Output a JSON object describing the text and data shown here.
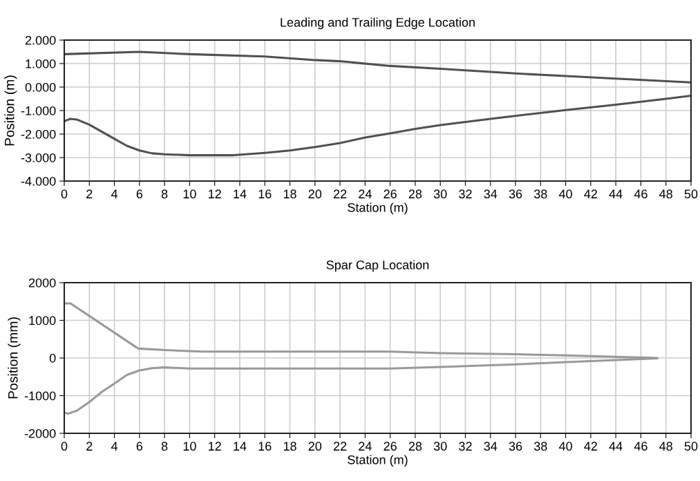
{
  "chart_data": [
    {
      "type": "line",
      "title": "Leading and Trailing Edge Location",
      "xlabel": "Station (m)",
      "ylabel": "Position (m)",
      "xlim": [
        0,
        50
      ],
      "xticks": [
        0,
        2,
        4,
        6,
        8,
        10,
        12,
        14,
        16,
        18,
        20,
        22,
        24,
        26,
        28,
        30,
        32,
        34,
        36,
        38,
        40,
        42,
        44,
        46,
        48,
        50
      ],
      "ylim": [
        -4,
        2
      ],
      "yticks": [
        {
          "value": 2,
          "label": "2.000"
        },
        {
          "value": 1,
          "label": "1.000"
        },
        {
          "value": 0,
          "label": "0.000"
        },
        {
          "value": -1,
          "label": "-1.000"
        },
        {
          "value": -2,
          "label": "-2.000"
        },
        {
          "value": -3,
          "label": "-3.000"
        },
        {
          "value": -4,
          "label": "-4.000"
        }
      ],
      "grid": true,
      "series": [
        {
          "color": "#505050",
          "x": [
            0,
            6,
            10,
            16,
            20,
            22,
            26,
            30,
            36,
            40,
            44,
            50
          ],
          "values": [
            1.4,
            1.5,
            1.4,
            1.3,
            1.15,
            1.1,
            0.9,
            0.78,
            0.58,
            0.47,
            0.36,
            0.2
          ]
        },
        {
          "color": "#505050",
          "x": [
            0,
            0.5,
            1,
            2,
            3,
            4,
            5,
            6,
            7,
            8,
            10,
            13.5,
            16,
            18,
            20,
            22,
            24,
            26,
            28,
            30,
            34,
            38,
            40,
            44,
            48,
            50
          ],
          "values": [
            -1.45,
            -1.35,
            -1.38,
            -1.6,
            -1.9,
            -2.2,
            -2.5,
            -2.7,
            -2.82,
            -2.86,
            -2.9,
            -2.9,
            -2.8,
            -2.7,
            -2.55,
            -2.38,
            -2.15,
            -1.97,
            -1.78,
            -1.62,
            -1.35,
            -1.1,
            -0.98,
            -0.75,
            -0.5,
            -0.37
          ]
        }
      ]
    },
    {
      "type": "line",
      "title": "Spar Cap Location",
      "xlabel": "Station (m)",
      "ylabel": "Position (mm)",
      "xlim": [
        0,
        50
      ],
      "xticks": [
        0,
        2,
        4,
        6,
        8,
        10,
        12,
        14,
        16,
        18,
        20,
        22,
        24,
        26,
        28,
        30,
        32,
        34,
        36,
        38,
        40,
        42,
        44,
        46,
        48,
        50
      ],
      "ylim": [
        -2000,
        2000
      ],
      "yticks": [
        2000,
        1000,
        0,
        -1000,
        -2000
      ],
      "grid": true,
      "series": [
        {
          "color": "#999999",
          "x": [
            0,
            0.5,
            5.9,
            8,
            11,
            26,
            30,
            36,
            40,
            47.3
          ],
          "values": [
            1450,
            1450,
            250,
            210,
            170,
            170,
            130,
            100,
            70,
            0
          ]
        },
        {
          "color": "#999999",
          "x": [
            0,
            0.3,
            1,
            2,
            3,
            4,
            5,
            6,
            7,
            8,
            10,
            26,
            30,
            36,
            40,
            47.3
          ],
          "values": [
            -1450,
            -1480,
            -1400,
            -1170,
            -900,
            -680,
            -450,
            -330,
            -270,
            -250,
            -280,
            -280,
            -240,
            -170,
            -110,
            -10
          ]
        }
      ]
    }
  ]
}
